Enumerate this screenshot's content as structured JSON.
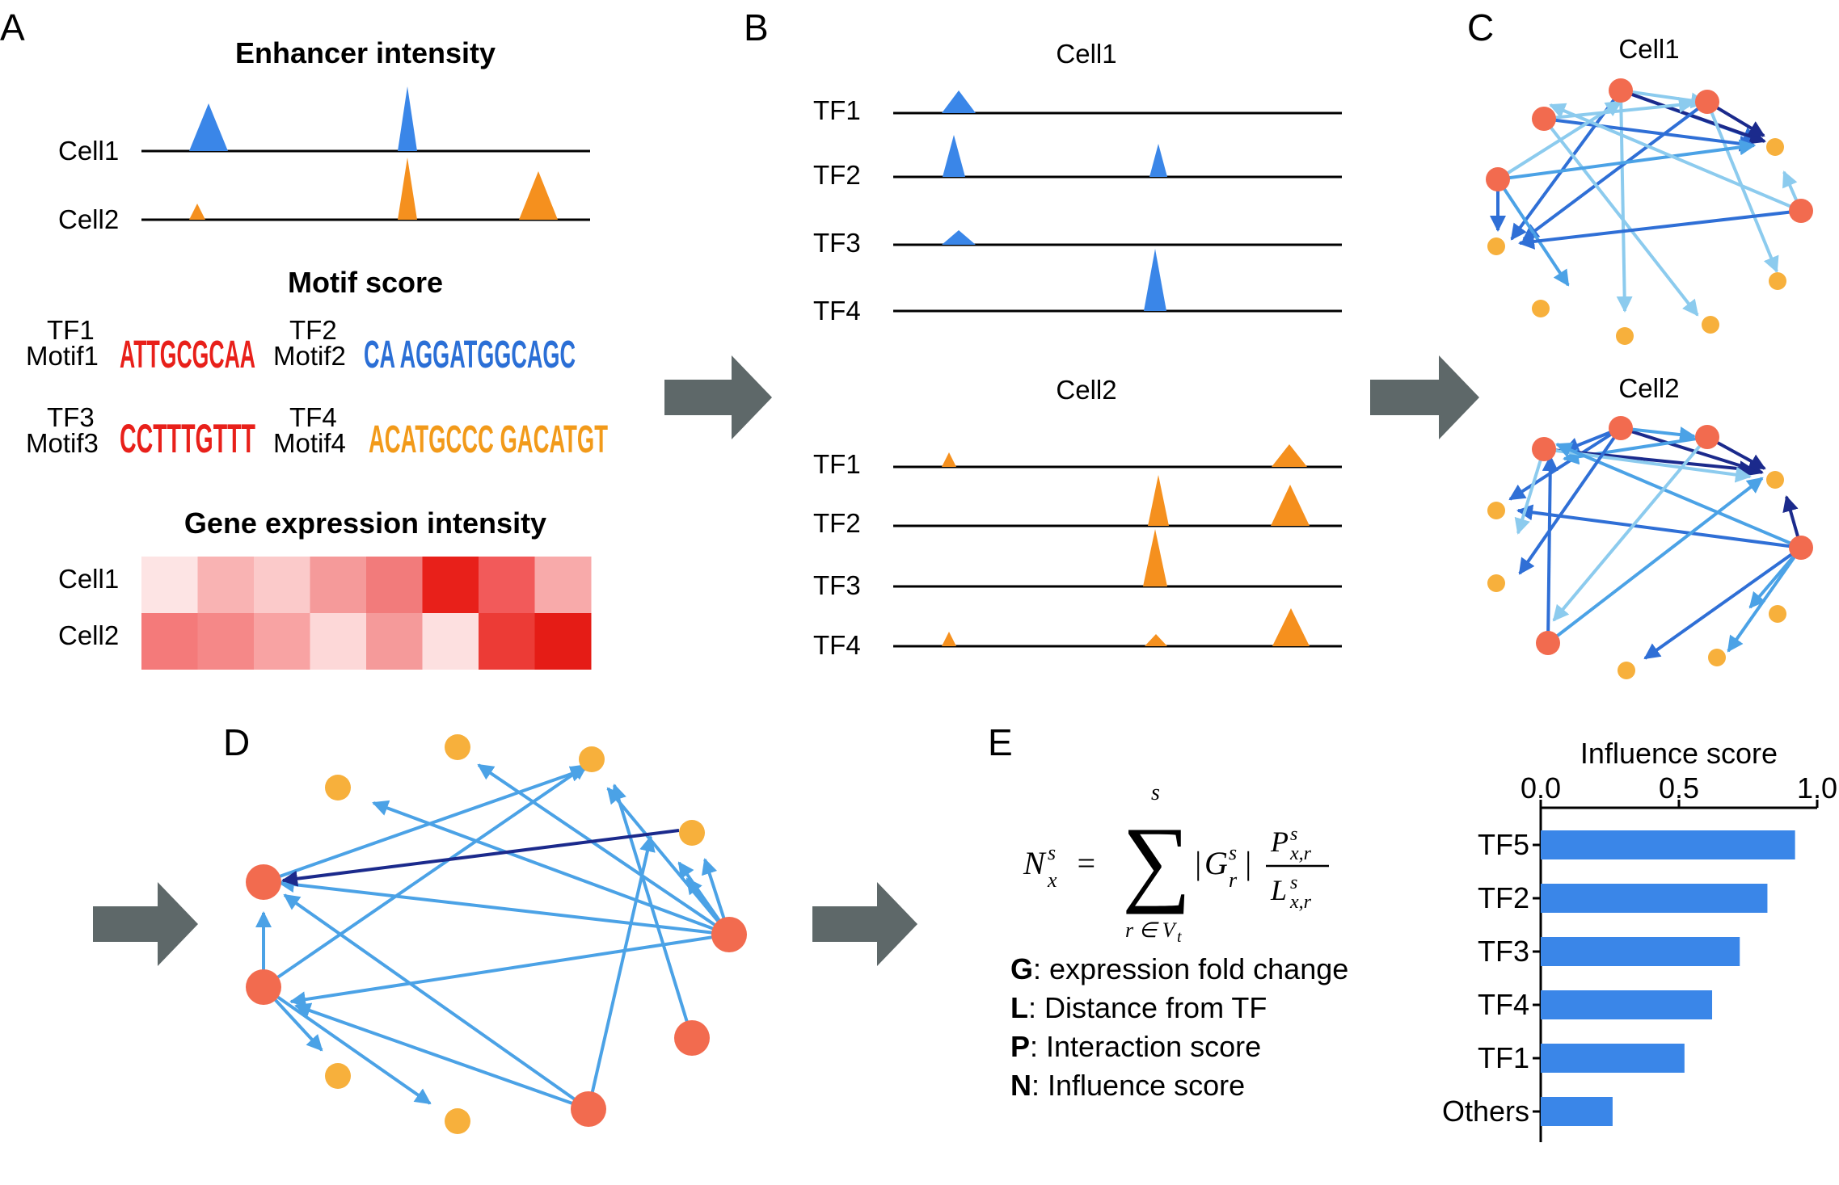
{
  "panel_labels": {
    "a": "A",
    "b": "B",
    "c": "C",
    "d": "D",
    "e": "E"
  },
  "panel_a": {
    "enhancer_title": "Enhancer intensity",
    "cells": [
      "Cell1",
      "Cell2"
    ],
    "motif_title": "Motif score",
    "motifs": [
      {
        "tf": "TF1",
        "motif": "Motif1",
        "logo": "ATTGCGCAA"
      },
      {
        "tf": "TF2",
        "motif": "Motif2",
        "logo": "CA  AGGATGGCAGC"
      },
      {
        "tf": "TF3",
        "motif": "Motif3",
        "logo": "CCTTTGTTT"
      },
      {
        "tf": "TF4",
        "motif": "Motif4",
        "logo": "ACATGCCC GACATGT"
      }
    ],
    "expression_title": "Gene expression intensity",
    "heatmap_colors": [
      [
        "#fde4e4",
        "#f9b3b3",
        "#fbcaca",
        "#f59a9a",
        "#f27b7b",
        "#e8201a",
        "#f25a5a",
        "#f8aaaa"
      ],
      [
        "#f47a7a",
        "#f58888",
        "#f8a3a3",
        "#fdd8d8",
        "#f59a9a",
        "#fde0e0",
        "#ec3b36",
        "#e51c16"
      ]
    ]
  },
  "panel_b": {
    "cell1_title": "Cell1",
    "cell2_title": "Cell2",
    "tfs": [
      "TF1",
      "TF2",
      "TF3",
      "TF4"
    ]
  },
  "panel_c": {
    "cell1_title": "Cell1",
    "cell2_title": "Cell2"
  },
  "panel_e": {
    "legend": [
      {
        "key": "G",
        "text": ": expression fold change"
      },
      {
        "key": "L",
        "text": ": Distance from TF"
      },
      {
        "key": "P",
        "text": ": Interaction score"
      },
      {
        "key": "N",
        "text": ": Influence score"
      }
    ]
  },
  "colors": {
    "blue": "#3a86e8",
    "orange": "#f5901e",
    "tf_node": "#f26b4f",
    "gene_node": "#f7b03c",
    "arrow": "#5e6869",
    "edge_blue": "#4ba2e6",
    "edge_dark": "#1b2a8c"
  },
  "chart_data": {
    "type": "bar",
    "orientation": "horizontal",
    "title": "Influence score",
    "categories": [
      "TF5",
      "TF2",
      "TF3",
      "TF4",
      "TF1",
      "Others"
    ],
    "values": [
      0.92,
      0.82,
      0.72,
      0.62,
      0.52,
      0.26
    ],
    "xlim": [
      0,
      1.0
    ],
    "xticks": [
      "0.0",
      "0.5",
      "1.0"
    ],
    "color": "#3a86e8"
  }
}
